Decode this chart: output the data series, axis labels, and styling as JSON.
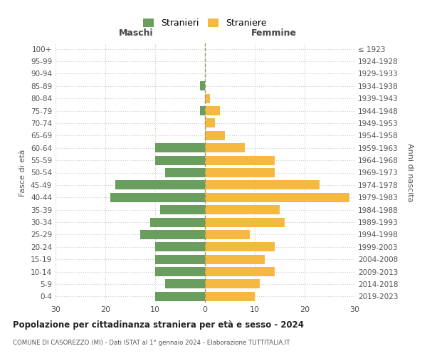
{
  "age_groups": [
    "0-4",
    "5-9",
    "10-14",
    "15-19",
    "20-24",
    "25-29",
    "30-34",
    "35-39",
    "40-44",
    "45-49",
    "50-54",
    "55-59",
    "60-64",
    "65-69",
    "70-74",
    "75-79",
    "80-84",
    "85-89",
    "90-94",
    "95-99",
    "100+"
  ],
  "birth_years": [
    "2019-2023",
    "2014-2018",
    "2009-2013",
    "2004-2008",
    "1999-2003",
    "1994-1998",
    "1989-1993",
    "1984-1988",
    "1979-1983",
    "1974-1978",
    "1969-1973",
    "1964-1968",
    "1959-1963",
    "1954-1958",
    "1949-1953",
    "1944-1948",
    "1939-1943",
    "1934-1938",
    "1929-1933",
    "1924-1928",
    "≤ 1923"
  ],
  "males": [
    10,
    8,
    10,
    10,
    10,
    13,
    11,
    9,
    19,
    18,
    8,
    10,
    10,
    0,
    0,
    1,
    0,
    1,
    0,
    0,
    0
  ],
  "females": [
    10,
    11,
    14,
    12,
    14,
    9,
    16,
    15,
    29,
    23,
    14,
    14,
    8,
    4,
    2,
    3,
    1,
    0,
    0,
    0,
    0
  ],
  "male_color": "#6a9e5e",
  "female_color": "#f5b942",
  "background_color": "#ffffff",
  "grid_color": "#cccccc",
  "title": "Popolazione per cittadinanza straniera per età e sesso - 2024",
  "subtitle": "COMUNE DI CASOREZZO (MI) - Dati ISTAT al 1° gennaio 2024 - Elaborazione TUTTITALIA.IT",
  "xlabel_left": "Maschi",
  "xlabel_right": "Femmine",
  "ylabel_left": "Fasce di età",
  "ylabel_right": "Anni di nascita",
  "legend_male": "Stranieri",
  "legend_female": "Straniere",
  "xlim": 30
}
